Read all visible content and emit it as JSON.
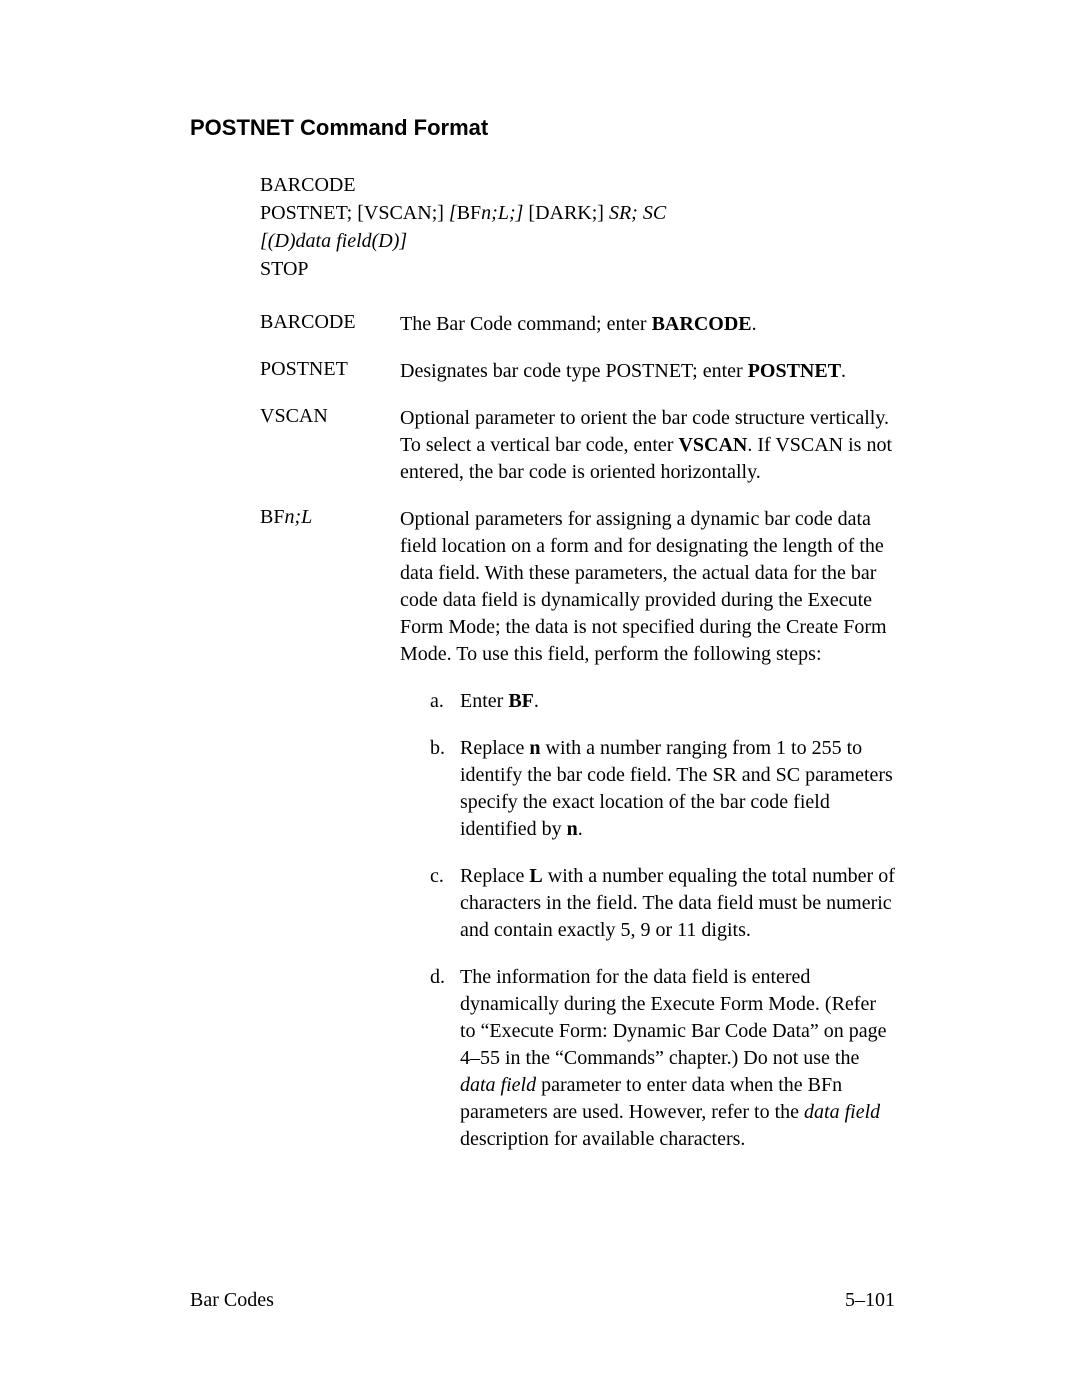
{
  "section_title": "POSTNET Command Format",
  "syntax": {
    "line1": "BARCODE",
    "line2_pre": "POSTNET; [VSCAN;] ",
    "line2_italic1": "[",
    "line2_mid": "BF",
    "line2_italic2": "n;L;]",
    "line2_post": " [DARK;] ",
    "line2_italic3": "SR; SC",
    "line3": "[(D)data field(D)]",
    "line4": "STOP"
  },
  "definitions": [
    {
      "term": "BARCODE",
      "desc_pre": "The Bar Code command; enter ",
      "desc_bold": "BARCODE",
      "desc_post": "."
    },
    {
      "term": "POSTNET",
      "desc_pre": "Designates bar code type POSTNET; enter ",
      "desc_bold": "POSTNET",
      "desc_post": "."
    },
    {
      "term": "VSCAN",
      "desc_pre": "Optional parameter to orient the bar code structure vertically. To select a vertical bar code, enter ",
      "desc_bold": "VSCAN",
      "desc_post": ". If VSCAN is not entered, the bar code is oriented horizontally."
    }
  ],
  "bf_term_pre": "BF",
  "bf_term_italic": "n;L",
  "bf_desc": "Optional parameters for assigning a dynamic bar code data field location on a form and for designating the length of the data field. With these parameters, the actual data for the bar code data field is dynamically provided during the Execute Form Mode; the data is not specified during the Create Form Mode. To use this field, perform the following steps:",
  "bf_steps": {
    "a": {
      "letter": "a.",
      "pre": "Enter ",
      "bold": "BF",
      "post": "."
    },
    "b": {
      "letter": "b.",
      "pre": "Replace ",
      "bold1": "n",
      "mid": " with a number ranging from 1 to 255 to identify the bar code field. The SR and SC parameters specify the exact location of the bar code field identified by ",
      "bold2": "n",
      "post": "."
    },
    "c": {
      "letter": "c.",
      "pre": "Replace ",
      "bold": "L",
      "post": " with a number equaling the total number of characters in the field. The data field must be numeric and contain exactly 5, 9 or 11 digits."
    },
    "d": {
      "letter": "d.",
      "pre": "The information for the data field is entered dynamically during the Execute Form Mode. (Refer to “Execute Form: Dynamic Bar Code Data” on page 4–55 in the “Commands” chapter.) Do not use the ",
      "italic1": "data field",
      "mid": " parameter to enter data when the BFn parameters are used. However, refer to the ",
      "italic2": "data field",
      "post": " description for available characters."
    }
  },
  "footer": {
    "left": "Bar Codes",
    "right": "5–101"
  }
}
